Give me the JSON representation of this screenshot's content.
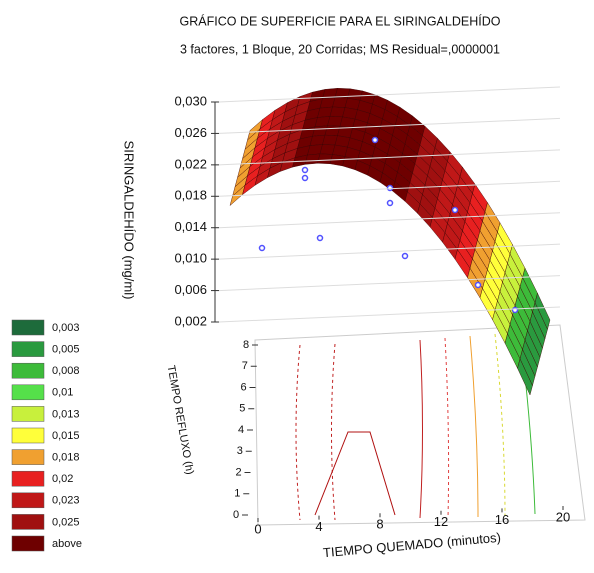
{
  "chart_data": {
    "type": "surface",
    "title": "GRÁFICO DE SUPERFICIE PARA EL SIRINGALDEHÍDO",
    "subtitle": "3 factores, 1 Bloque, 20 Corridas; MS Residual=,0000001",
    "zlabel": "SIRINGALDEHÍDO (mg/ml)",
    "ylabel": "TEMPO REFLUXO (h)",
    "xlabel": "TIEMPO QUEMADO (minutos)",
    "zlim": [
      0.002,
      0.03
    ],
    "zticks": [
      {
        "value": 0.002,
        "label": "0,002"
      },
      {
        "value": 0.006,
        "label": "0,006"
      },
      {
        "value": 0.01,
        "label": "0,010"
      },
      {
        "value": 0.014,
        "label": "0,014"
      },
      {
        "value": 0.018,
        "label": "0,018"
      },
      {
        "value": 0.022,
        "label": "0,022"
      },
      {
        "value": 0.026,
        "label": "0,026"
      },
      {
        "value": 0.03,
        "label": "0,030"
      }
    ],
    "ylim": [
      0,
      8
    ],
    "yticks": [
      0,
      1,
      2,
      3,
      4,
      5,
      6,
      7,
      8
    ],
    "xlim": [
      0,
      20
    ],
    "xticks": [
      0,
      4,
      8,
      12,
      16,
      20
    ],
    "legend": [
      {
        "value": 0.003,
        "label": "0,003",
        "color": "#1d6b3b"
      },
      {
        "value": 0.005,
        "label": "0,005",
        "color": "#2a9a3f"
      },
      {
        "value": 0.008,
        "label": "0,008",
        "color": "#3dbb3a"
      },
      {
        "value": 0.01,
        "label": "0,01",
        "color": "#55e04a"
      },
      {
        "value": 0.013,
        "label": "0,013",
        "color": "#c8f03c"
      },
      {
        "value": 0.015,
        "label": "0,015",
        "color": "#ffff3a"
      },
      {
        "value": 0.018,
        "label": "0,018",
        "color": "#f0a030"
      },
      {
        "value": 0.02,
        "label": "0,02",
        "color": "#e82020"
      },
      {
        "value": 0.023,
        "label": "0,023",
        "color": "#c01818"
      },
      {
        "value": 0.025,
        "label": "0,025",
        "color": "#a01010"
      },
      {
        "label": "above",
        "color": "#6e0000"
      }
    ]
  }
}
